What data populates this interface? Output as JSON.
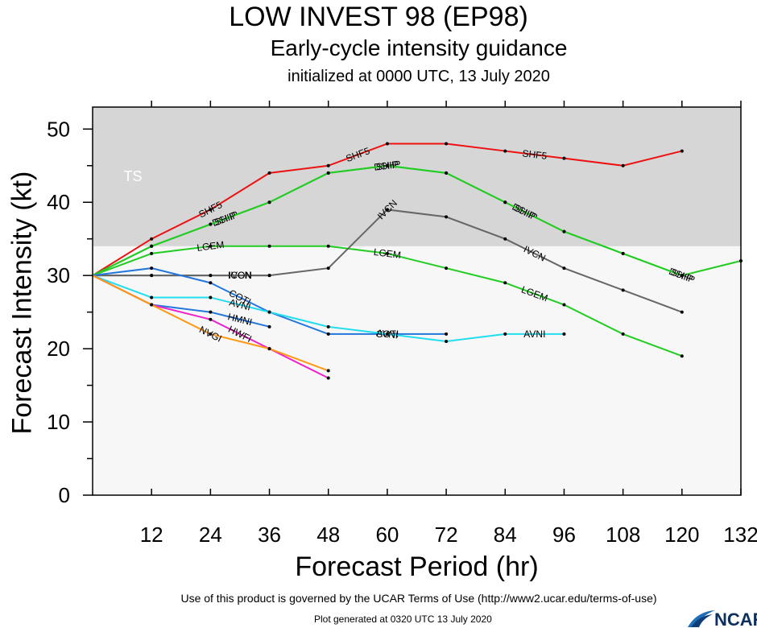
{
  "title": "LOW INVEST 98 (EP98)",
  "subtitle": "Early-cycle intensity guidance",
  "initialized": "initialized at 0000 UTC, 13 July 2020",
  "footer": {
    "terms": "Use of this product is governed by the UCAR Terms of Use (http://www2.ucar.edu/terms-of-use)",
    "generated": "Plot generated at 0320 UTC   13 July 2020",
    "logo_text": "NCAR"
  },
  "chart_data": {
    "type": "line",
    "xlabel": "Forecast Period (hr)",
    "ylabel": "Forecast Intensity (kt)",
    "xlim": [
      0,
      132
    ],
    "ylim": [
      0,
      53
    ],
    "xticks": [
      12,
      24,
      36,
      48,
      60,
      72,
      84,
      96,
      108,
      120,
      132
    ],
    "yticks": [
      0,
      10,
      20,
      30,
      40,
      50
    ],
    "band": {
      "label": "TS",
      "from": 34,
      "to": 53,
      "color": "#d6d6d6"
    },
    "background": "#f7f7f7",
    "series": [
      {
        "name": "SHF5",
        "color": "#ee1111",
        "points": [
          [
            0,
            30
          ],
          [
            12,
            35
          ],
          [
            24,
            39
          ],
          [
            36,
            44
          ],
          [
            48,
            45
          ],
          [
            60,
            48
          ],
          [
            72,
            48
          ],
          [
            84,
            47
          ],
          [
            96,
            46
          ],
          [
            108,
            45
          ],
          [
            120,
            47
          ]
        ],
        "labels": [
          [
            24,
            "SHF5"
          ],
          [
            54,
            "SHF5"
          ],
          [
            90,
            "SHF5"
          ]
        ]
      },
      {
        "name": "DSHP",
        "color": "#22cc22",
        "points": [
          [
            0,
            30
          ],
          [
            12,
            34
          ],
          [
            24,
            37
          ],
          [
            36,
            40
          ],
          [
            48,
            44
          ],
          [
            60,
            45
          ],
          [
            72,
            44
          ],
          [
            84,
            40
          ],
          [
            96,
            36
          ],
          [
            108,
            33
          ],
          [
            120,
            30
          ],
          [
            132,
            32
          ]
        ],
        "labels": [
          [
            27,
            "DSHP"
          ],
          [
            60,
            "DSHP"
          ],
          [
            88,
            "DSHP"
          ],
          [
            120,
            "DSHP"
          ]
        ]
      },
      {
        "name": "SHIP",
        "color": "#22cc22",
        "points": [
          [
            0,
            30
          ],
          [
            12,
            34
          ],
          [
            24,
            37
          ],
          [
            36,
            40
          ],
          [
            48,
            44
          ],
          [
            60,
            45
          ],
          [
            72,
            44
          ],
          [
            84,
            40
          ],
          [
            96,
            36
          ],
          [
            108,
            33
          ],
          [
            120,
            30
          ]
        ],
        "labels": [
          [
            27,
            "SHIP"
          ],
          [
            60,
            "SHIP"
          ],
          [
            88,
            "SHIP"
          ],
          [
            120,
            "SHIP"
          ]
        ]
      },
      {
        "name": "LGEM",
        "color": "#22cc22",
        "points": [
          [
            0,
            30
          ],
          [
            12,
            33
          ],
          [
            24,
            34
          ],
          [
            36,
            34
          ],
          [
            48,
            34
          ],
          [
            60,
            33
          ],
          [
            72,
            31
          ],
          [
            84,
            29
          ],
          [
            96,
            26
          ],
          [
            108,
            22
          ],
          [
            120,
            19
          ]
        ],
        "labels": [
          [
            24,
            "LGEM"
          ],
          [
            60,
            "LGEM"
          ],
          [
            90,
            "LGEM"
          ]
        ]
      },
      {
        "name": "IVCN",
        "color": "#666666",
        "points": [
          [
            0,
            30
          ],
          [
            12,
            30
          ],
          [
            24,
            30
          ],
          [
            36,
            30
          ],
          [
            48,
            31
          ],
          [
            60,
            39
          ],
          [
            72,
            38
          ],
          [
            84,
            35
          ],
          [
            96,
            31
          ],
          [
            108,
            28
          ],
          [
            120,
            25
          ]
        ],
        "labels": [
          [
            30,
            "IVCN"
          ],
          [
            60,
            "IVCN"
          ],
          [
            90,
            "IVCN"
          ]
        ]
      },
      {
        "name": "ICON",
        "color": "#666666",
        "points": [
          [
            0,
            30
          ],
          [
            12,
            30
          ],
          [
            24,
            30
          ],
          [
            36,
            30
          ]
        ],
        "labels": [
          [
            30,
            "ICON"
          ]
        ]
      },
      {
        "name": "COTI",
        "color": "#2277dd",
        "points": [
          [
            0,
            30
          ],
          [
            12,
            31
          ],
          [
            24,
            29
          ],
          [
            36,
            25
          ],
          [
            48,
            22
          ],
          [
            60,
            22
          ],
          [
            72,
            22
          ]
        ],
        "labels": [
          [
            30,
            "COTI"
          ],
          [
            60,
            "COTI"
          ]
        ]
      },
      {
        "name": "AVNI",
        "color": "#22ddee",
        "points": [
          [
            0,
            30
          ],
          [
            12,
            27
          ],
          [
            24,
            27
          ],
          [
            36,
            25
          ],
          [
            48,
            23
          ],
          [
            60,
            22
          ],
          [
            72,
            21
          ],
          [
            84,
            22
          ],
          [
            96,
            22
          ]
        ],
        "labels": [
          [
            30,
            "AVNI"
          ],
          [
            60,
            "AVNI"
          ],
          [
            90,
            "AVNI"
          ]
        ]
      },
      {
        "name": "HMNI",
        "color": "#2277dd",
        "points": [
          [
            0,
            30
          ],
          [
            12,
            26
          ],
          [
            24,
            25
          ],
          [
            36,
            23
          ]
        ],
        "labels": [
          [
            30,
            "HMNI"
          ]
        ]
      },
      {
        "name": "HWFI",
        "color": "#ee22cc",
        "points": [
          [
            0,
            30
          ],
          [
            12,
            26
          ],
          [
            24,
            24
          ],
          [
            36,
            20
          ],
          [
            48,
            16
          ]
        ],
        "labels": [
          [
            30,
            "HWFI"
          ]
        ]
      },
      {
        "name": "NVGI",
        "color": "#ff9911",
        "points": [
          [
            0,
            30
          ],
          [
            12,
            26
          ],
          [
            24,
            22
          ],
          [
            36,
            20
          ],
          [
            48,
            17
          ]
        ],
        "labels": [
          [
            24,
            "NVGI"
          ]
        ]
      }
    ]
  }
}
